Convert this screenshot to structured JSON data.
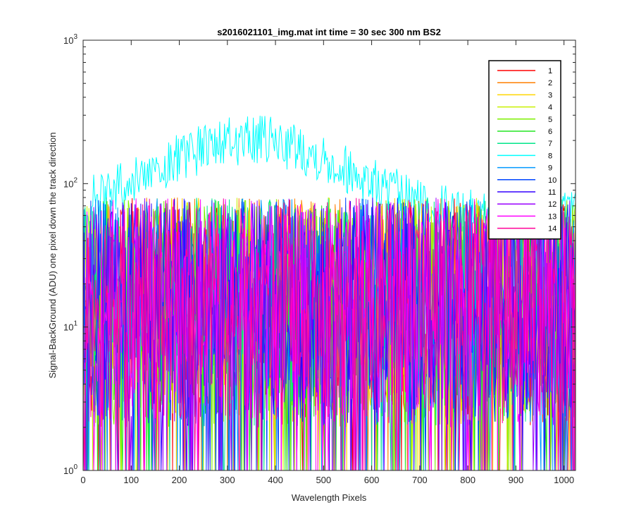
{
  "chart_data": {
    "type": "line",
    "title": "s2016021101_img.mat int time = 30 sec  300 nm BS2",
    "xlabel": "Wavelength Pixels",
    "ylabel": "Signal-BackGround (ADU) one pixel down the track direction",
    "xlim": [
      0,
      1024
    ],
    "ylim": [
      1,
      1000
    ],
    "yscale": "log",
    "xticks": [
      "0",
      "100",
      "200",
      "300",
      "400",
      "500",
      "600",
      "700",
      "800",
      "900",
      "1000"
    ],
    "yticks": [
      {
        "base": "10",
        "exp": "0"
      },
      {
        "base": "10",
        "exp": "1"
      },
      {
        "base": "10",
        "exp": "2"
      },
      {
        "base": "10",
        "exp": "3"
      }
    ],
    "grid": false,
    "legend_position": "top-right",
    "peak_series": "8",
    "peak_level_range": [
      60,
      200
    ],
    "noise_level_range": [
      1,
      80
    ],
    "series": [
      {
        "name": "1",
        "color": "#ff0000"
      },
      {
        "name": "2",
        "color": "#ff7f00"
      },
      {
        "name": "3",
        "color": "#ffd500"
      },
      {
        "name": "4",
        "color": "#c8f000"
      },
      {
        "name": "5",
        "color": "#7cf000"
      },
      {
        "name": "6",
        "color": "#22e622"
      },
      {
        "name": "7",
        "color": "#00e68a"
      },
      {
        "name": "8",
        "color": "#00ffff"
      },
      {
        "name": "9",
        "color": "#0099ff"
      },
      {
        "name": "10",
        "color": "#0044ff"
      },
      {
        "name": "11",
        "color": "#3300ff"
      },
      {
        "name": "12",
        "color": "#9900ff"
      },
      {
        "name": "13",
        "color": "#ff00ff"
      },
      {
        "name": "14",
        "color": "#ff0099"
      }
    ]
  }
}
